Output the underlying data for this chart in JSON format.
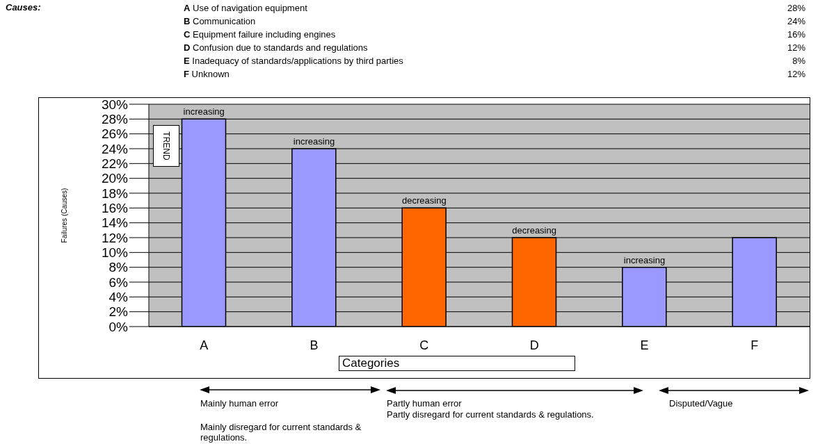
{
  "chart_data": {
    "type": "bar",
    "categories": [
      "A",
      "B",
      "C",
      "D",
      "E",
      "F"
    ],
    "values": [
      28,
      24,
      16,
      12,
      8,
      12
    ],
    "colors": [
      "#9999ff",
      "#9999ff",
      "#ff6600",
      "#ff6600",
      "#9999ff",
      "#9999ff"
    ],
    "xlabel": "Categories",
    "ylabel": "Failures (Causes)",
    "ylim": [
      0,
      30
    ],
    "yticks": [
      {
        "value": 0,
        "label": "0%"
      },
      {
        "value": 2,
        "label": "2%"
      },
      {
        "value": 4,
        "label": "4%"
      },
      {
        "value": 6,
        "label": "6%"
      },
      {
        "value": 8,
        "label": "8%"
      },
      {
        "value": 10,
        "label": "10%"
      },
      {
        "value": 12,
        "label": "12%"
      },
      {
        "value": 14,
        "label": "14%"
      },
      {
        "value": 16,
        "label": "16%"
      },
      {
        "value": 18,
        "label": "18%"
      },
      {
        "value": 20,
        "label": "20%"
      },
      {
        "value": 22,
        "label": "22%"
      },
      {
        "value": 24,
        "label": "24%"
      },
      {
        "value": 26,
        "label": "26%"
      },
      {
        "value": 28,
        "label": "28%"
      },
      {
        "value": 30,
        "label": "30%"
      }
    ],
    "grid": "y",
    "legend": false,
    "annotations": [
      "Causes:",
      "A Use of navigation equipment",
      "B Communication",
      "C Equipment failure including engines",
      "D Confusion due to standards and regulations",
      "E Inadequacy of standards/applications by third parties",
      "F Unknown",
      "28%",
      "24%",
      "16%",
      "12%",
      "8%",
      "12%",
      "TREND",
      "Mainly human error",
      "Mainly disregard for current standards & regulations.",
      "Partly human error",
      "Partly disregard for current standards & regulations.",
      "Disputed/Vague",
      {
        "text": "increasing",
        "x": "A",
        "y": 28
      },
      {
        "text": "increasing",
        "x": "B",
        "y": 24
      },
      {
        "text": "decreasing",
        "x": "C",
        "y": 16
      },
      {
        "text": "decreasing",
        "x": "D",
        "y": 12
      },
      {
        "text": "increasing",
        "x": "E",
        "y": 8
      }
    ]
  }
}
